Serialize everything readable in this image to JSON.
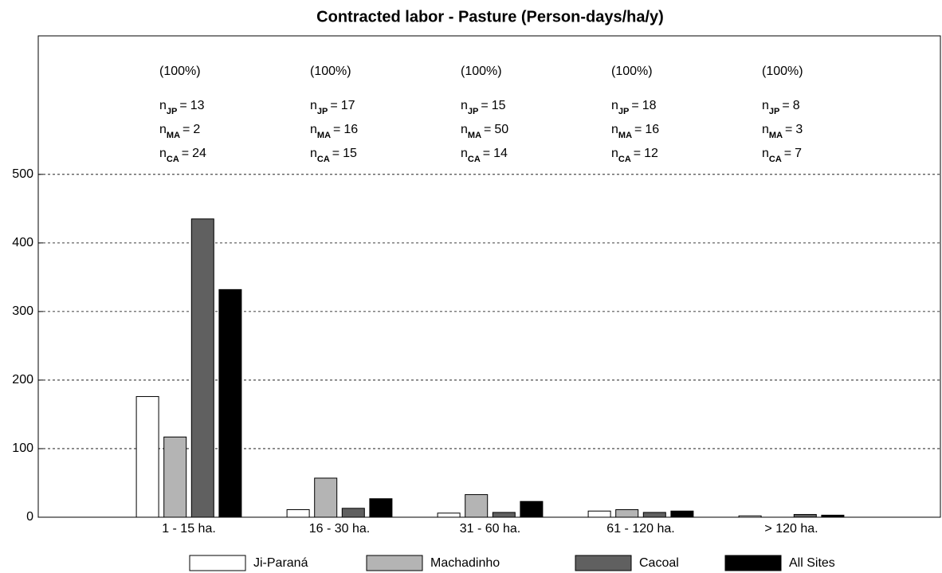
{
  "chart_data": {
    "type": "bar",
    "title": "Contracted labor - Pasture (Person-days/ha/y)",
    "categories": [
      "1 - 15 ha.",
      "16 - 30 ha.",
      "31 - 60 ha.",
      "61 - 120 ha.",
      "> 120 ha."
    ],
    "series": [
      {
        "name": "Ji-Paraná",
        "color": "#ffffff",
        "values": [
          176,
          11,
          6,
          9,
          2
        ]
      },
      {
        "name": "Machadinho",
        "color": "#b4b4b4",
        "values": [
          117,
          57,
          33,
          11,
          0
        ]
      },
      {
        "name": "Cacoal",
        "color": "#606060",
        "values": [
          435,
          13,
          7,
          7,
          4
        ]
      },
      {
        "name": "All Sites",
        "color": "#000000",
        "values": [
          332,
          27,
          23,
          9,
          3
        ]
      }
    ],
    "ylim": [
      0,
      702
    ],
    "yticks": [
      0,
      100,
      200,
      300,
      400,
      500
    ],
    "grid": true,
    "annotations": {
      "percent": [
        "(100%)",
        "(100%)",
        "(100%)",
        "(100%)",
        "(100%)"
      ],
      "count_prefix": "n",
      "count_sep": "=",
      "count_labels": [
        "JP",
        "MA",
        "CA"
      ],
      "counts": [
        [
          13,
          2,
          24
        ],
        [
          17,
          16,
          15
        ],
        [
          15,
          50,
          14
        ],
        [
          18,
          16,
          12
        ],
        [
          8,
          3,
          7
        ]
      ]
    }
  }
}
